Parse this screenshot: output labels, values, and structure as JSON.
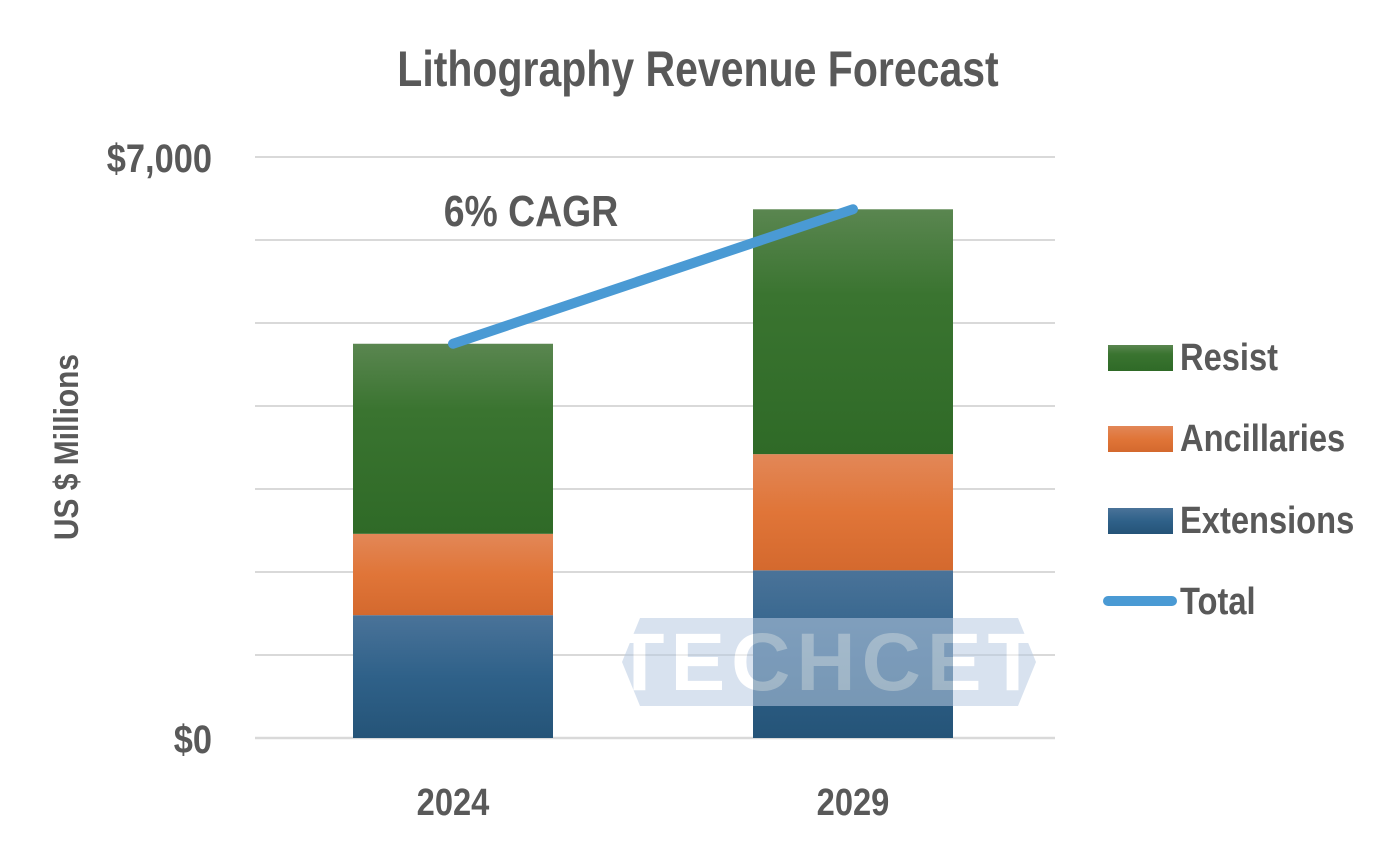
{
  "chart_data": {
    "type": "bar",
    "stacked": true,
    "title": "Lithography Revenue Forecast",
    "xlabel": "",
    "ylabel": "US $ Millions",
    "ylim": [
      0,
      7000
    ],
    "y_tick_step": 1000,
    "y_tick_labels_shown": [
      "$0",
      "$7,000"
    ],
    "grid": true,
    "categories": [
      "2024",
      "2029"
    ],
    "series": [
      {
        "name": "Extensions",
        "type": "bar",
        "color": "#2d5f87",
        "values": [
          1480,
          2020
        ]
      },
      {
        "name": "Ancillaries",
        "type": "bar",
        "color": "#e07538",
        "values": [
          980,
          1400
        ]
      },
      {
        "name": "Resist",
        "type": "bar",
        "color": "#356e2c",
        "values": [
          2290,
          2950
        ]
      },
      {
        "name": "Total",
        "type": "line",
        "color": "#4a9ad4",
        "values": [
          4750,
          6370
        ]
      }
    ],
    "legend": {
      "position": "right",
      "order": [
        "Resist",
        "Ancillaries",
        "Extensions",
        "Total"
      ]
    },
    "annotations": [
      {
        "text": "6% CAGR"
      }
    ],
    "watermark": "TECHCET"
  }
}
